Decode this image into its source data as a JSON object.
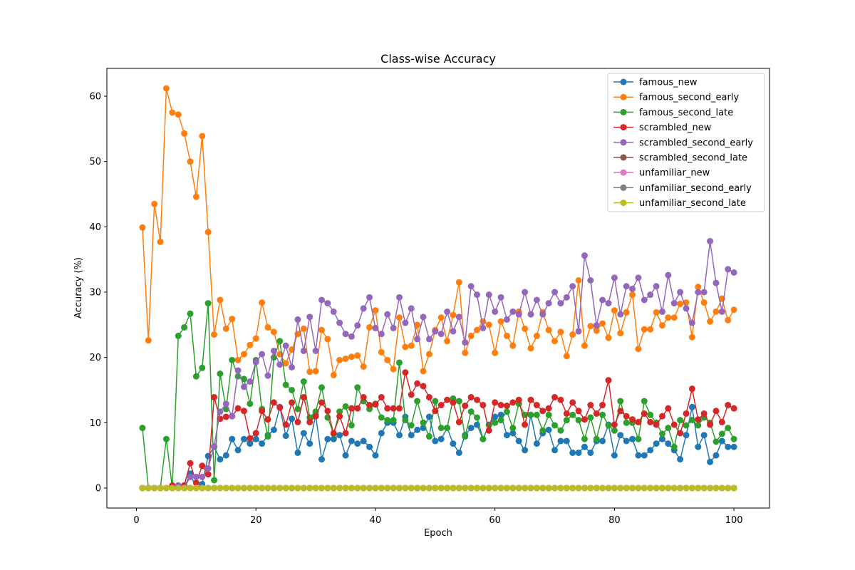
{
  "chart_data": {
    "type": "line",
    "title": "Class-wise Accuracy",
    "xlabel": "Epoch",
    "ylabel": "Accuracy (%)",
    "xlim": [
      -4.95,
      105.95
    ],
    "ylim": [
      -3.06,
      64.26
    ],
    "xticks": [
      0,
      20,
      40,
      60,
      80,
      100
    ],
    "yticks": [
      0,
      10,
      20,
      30,
      40,
      50,
      60
    ],
    "grid": false,
    "legend": "top-right",
    "x": [
      1,
      2,
      3,
      4,
      5,
      6,
      7,
      8,
      9,
      10,
      11,
      12,
      13,
      14,
      15,
      16,
      17,
      18,
      19,
      20,
      21,
      22,
      23,
      24,
      25,
      26,
      27,
      28,
      29,
      30,
      31,
      32,
      33,
      34,
      35,
      36,
      37,
      38,
      39,
      40,
      41,
      42,
      43,
      44,
      45,
      46,
      47,
      48,
      49,
      50,
      51,
      52,
      53,
      54,
      55,
      56,
      57,
      58,
      59,
      60,
      61,
      62,
      63,
      64,
      65,
      66,
      67,
      68,
      69,
      70,
      71,
      72,
      73,
      74,
      75,
      76,
      77,
      78,
      79,
      80,
      81,
      82,
      83,
      84,
      85,
      86,
      87,
      88,
      89,
      90,
      91,
      92,
      93,
      94,
      95,
      96,
      97,
      98,
      99,
      100
    ],
    "series": [
      {
        "name": "famous_new",
        "color": "#1f77b4",
        "values": [
          0,
          0,
          0,
          0,
          0,
          0,
          0,
          0,
          2.2,
          0,
          0.6,
          4.9,
          6.3,
          4.4,
          5.0,
          7.5,
          5.8,
          7.5,
          6.8,
          7.5,
          6.8,
          8.1,
          8.9,
          12.4,
          8.0,
          10.6,
          5.4,
          8.4,
          6.8,
          11.2,
          4.4,
          7.5,
          7.5,
          8.1,
          5.0,
          7.2,
          6.8,
          7.2,
          6.3,
          5.0,
          8.4,
          10.0,
          10.0,
          8.1,
          10.9,
          8.1,
          8.9,
          9.2,
          10.9,
          7.2,
          7.5,
          9.2,
          6.8,
          5.4,
          8.1,
          9.2,
          9.7,
          7.5,
          9.7,
          10.9,
          11.2,
          8.1,
          8.4,
          7.2,
          5.8,
          11.2,
          6.8,
          8.4,
          8.9,
          5.8,
          7.2,
          7.2,
          5.4,
          5.4,
          6.3,
          5.4,
          7.2,
          7.2,
          9.7,
          5.0,
          8.1,
          7.2,
          7.5,
          5.0,
          5.0,
          5.8,
          6.8,
          7.5,
          6.8,
          5.8,
          4.4,
          8.1,
          12.4,
          6.3,
          8.1,
          4.0,
          5.0,
          7.2,
          6.3,
          6.3
        ]
      },
      {
        "name": "famous_second_early",
        "color": "#ff7f0e",
        "values": [
          39.9,
          22.6,
          43.5,
          37.7,
          61.2,
          57.5,
          57.2,
          54.3,
          50.0,
          44.6,
          53.9,
          39.2,
          23.5,
          28.8,
          24.4,
          25.9,
          19.6,
          20.5,
          21.9,
          22.9,
          28.4,
          24.6,
          23.9,
          20.5,
          19.1,
          21.2,
          23.6,
          24.4,
          17.8,
          17.9,
          24.2,
          22.8,
          17.3,
          19.6,
          19.8,
          20.1,
          20.3,
          18.6,
          24.6,
          27.2,
          20.8,
          19.6,
          18.2,
          26.1,
          21.6,
          21.8,
          25.0,
          17.9,
          20.5,
          24.2,
          26.1,
          22.5,
          26.5,
          31.5,
          20.7,
          23.3,
          24.2,
          25.5,
          25.0,
          20.7,
          25.5,
          23.3,
          21.8,
          27.0,
          24.4,
          21.4,
          23.3,
          26.9,
          24.2,
          22.5,
          23.9,
          20.2,
          23.5,
          31.8,
          21.8,
          24.8,
          24.1,
          25.2,
          23.0,
          27.2,
          23.7,
          26.9,
          29.6,
          21.3,
          24.3,
          24.3,
          26.9,
          24.9,
          26.1,
          26.1,
          28.2,
          28.4,
          23.1,
          30.8,
          28.4,
          25.5,
          27.0,
          29.0,
          25.7,
          27.3
        ]
      },
      {
        "name": "famous_second_late",
        "color": "#2ca02c",
        "values": [
          9.2,
          0,
          0,
          0,
          7.5,
          0,
          23.3,
          24.6,
          26.7,
          17.1,
          18.4,
          28.3,
          1.2,
          17.5,
          12.1,
          19.6,
          17.1,
          16.7,
          12.9,
          19.6,
          12.1,
          7.9,
          20.0,
          22.5,
          15.8,
          15.0,
          12.1,
          16.3,
          10.8,
          11.7,
          15.4,
          10.8,
          8.3,
          11.7,
          12.5,
          9.6,
          15.4,
          13.3,
          12.1,
          12.9,
          10.8,
          10.4,
          10.4,
          19.2,
          10.4,
          9.6,
          13.3,
          10.0,
          7.9,
          13.3,
          9.2,
          9.2,
          13.7,
          13.3,
          7.9,
          11.7,
          10.8,
          7.5,
          9.6,
          10.0,
          10.4,
          11.7,
          9.2,
          12.9,
          11.2,
          11.2,
          11.2,
          8.8,
          11.2,
          9.6,
          8.8,
          10.4,
          11.2,
          10.4,
          7.5,
          10.8,
          7.5,
          11.2,
          9.6,
          8.8,
          13.3,
          10.0,
          10.0,
          7.5,
          13.3,
          11.2,
          10.0,
          8.3,
          9.2,
          6.3,
          10.4,
          9.6,
          10.4,
          9.6,
          10.8,
          10.0,
          7.1,
          8.3,
          9.2,
          7.5
        ]
      },
      {
        "name": "scrambled_new",
        "color": "#d62728",
        "values": [
          0,
          0,
          0,
          0,
          0,
          0.4,
          0,
          0.4,
          3.8,
          0.8,
          3.4,
          2.1,
          13.9,
          10.6,
          10.9,
          11.0,
          12.2,
          11.8,
          7.6,
          8.4,
          11.8,
          10.5,
          13.1,
          12.3,
          9.7,
          13.1,
          10.1,
          13.9,
          10.1,
          11.0,
          13.1,
          11.8,
          8.4,
          11.0,
          8.4,
          12.2,
          12.2,
          13.9,
          12.7,
          12.8,
          13.9,
          12.2,
          12.2,
          12.2,
          17.7,
          14.3,
          16.0,
          15.6,
          13.9,
          11.8,
          12.7,
          13.5,
          13.1,
          10.1,
          12.6,
          13.9,
          13.5,
          12.7,
          8.8,
          13.1,
          12.7,
          12.6,
          13.1,
          13.5,
          9.7,
          13.5,
          12.7,
          11.8,
          12.2,
          13.9,
          13.5,
          11.4,
          13.1,
          11.8,
          10.5,
          12.7,
          11.4,
          12.7,
          16.5,
          9.7,
          11.8,
          11.0,
          10.5,
          10.1,
          11.4,
          10.1,
          9.7,
          11.0,
          12.2,
          9.7,
          8.4,
          11.4,
          15.2,
          10.5,
          11.4,
          9.7,
          11.8,
          10.1,
          12.7,
          12.2
        ]
      },
      {
        "name": "scrambled_second_early",
        "color": "#9467bd",
        "values": [
          0,
          0,
          0,
          0,
          0,
          0,
          0.4,
          0,
          1.7,
          1.7,
          1.7,
          3.0,
          6.4,
          11.7,
          12.9,
          11.0,
          18.0,
          15.5,
          16.3,
          19.3,
          20.5,
          17.2,
          21.0,
          18.9,
          21.8,
          18.5,
          25.8,
          21.0,
          26.2,
          21.0,
          28.8,
          28.3,
          27.0,
          25.3,
          23.6,
          23.2,
          24.9,
          27.5,
          29.2,
          24.5,
          23.6,
          26.6,
          24.5,
          29.2,
          25.3,
          27.5,
          22.8,
          26.2,
          22.8,
          24.0,
          23.6,
          27.0,
          24.0,
          26.2,
          22.3,
          30.9,
          29.6,
          24.5,
          29.6,
          27.0,
          29.2,
          25.8,
          27.0,
          26.6,
          30.0,
          26.6,
          28.8,
          26.6,
          28.3,
          30.0,
          28.3,
          29.2,
          30.9,
          24.0,
          35.6,
          31.8,
          24.9,
          28.8,
          28.3,
          32.2,
          26.6,
          30.9,
          30.5,
          32.2,
          28.8,
          29.6,
          30.9,
          27.0,
          32.6,
          28.3,
          30.0,
          27.5,
          25.3,
          30.0,
          30.0,
          37.8,
          31.4,
          27.0,
          33.5,
          33.0
        ]
      },
      {
        "name": "scrambled_second_late",
        "color": "#8c564b",
        "values": [
          0,
          0,
          0,
          0,
          0,
          0,
          0,
          0,
          0,
          0,
          0,
          0,
          0,
          0,
          0,
          0,
          0,
          0,
          0,
          0,
          0,
          0,
          0,
          0,
          0,
          0,
          0,
          0,
          0,
          0,
          0,
          0,
          0,
          0,
          0,
          0,
          0,
          0,
          0,
          0,
          0,
          0,
          0,
          0,
          0,
          0,
          0,
          0,
          0,
          0,
          0,
          0,
          0,
          0,
          0,
          0,
          0,
          0,
          0,
          0,
          0,
          0,
          0,
          0,
          0,
          0,
          0,
          0,
          0,
          0,
          0,
          0,
          0,
          0,
          0,
          0,
          0,
          0,
          0,
          0,
          0,
          0,
          0,
          0,
          0,
          0,
          0,
          0,
          0,
          0,
          0,
          0,
          0,
          0,
          0,
          0,
          0,
          0,
          0,
          0
        ]
      },
      {
        "name": "unfamiliar_new",
        "color": "#e377c2",
        "values": [
          0,
          0,
          0,
          0,
          0,
          0,
          0,
          0,
          0,
          0,
          0,
          0,
          0,
          0,
          0,
          0,
          0,
          0,
          0,
          0,
          0,
          0,
          0,
          0,
          0,
          0,
          0,
          0,
          0,
          0,
          0,
          0,
          0,
          0,
          0,
          0,
          0,
          0,
          0,
          0,
          0,
          0,
          0,
          0,
          0,
          0,
          0,
          0,
          0,
          0,
          0,
          0,
          0,
          0,
          0,
          0,
          0,
          0,
          0,
          0,
          0,
          0,
          0,
          0,
          0,
          0,
          0,
          0,
          0,
          0,
          0,
          0,
          0,
          0,
          0,
          0,
          0,
          0,
          0,
          0,
          0,
          0,
          0,
          0,
          0,
          0,
          0,
          0,
          0,
          0,
          0,
          0,
          0,
          0,
          0,
          0,
          0,
          0,
          0,
          0
        ]
      },
      {
        "name": "unfamiliar_second_early",
        "color": "#7f7f7f",
        "values": [
          0,
          0,
          0,
          0,
          0,
          0,
          0,
          0,
          0,
          0,
          0,
          0,
          0,
          0,
          0,
          0,
          0,
          0,
          0,
          0,
          0,
          0,
          0,
          0,
          0,
          0,
          0,
          0,
          0,
          0,
          0,
          0,
          0,
          0,
          0,
          0,
          0,
          0,
          0,
          0,
          0,
          0,
          0,
          0,
          0,
          0,
          0,
          0,
          0,
          0,
          0,
          0,
          0,
          0,
          0,
          0,
          0,
          0,
          0,
          0,
          0,
          0,
          0,
          0,
          0,
          0,
          0,
          0,
          0,
          0,
          0,
          0,
          0,
          0,
          0,
          0,
          0,
          0,
          0,
          0,
          0,
          0,
          0,
          0,
          0,
          0,
          0,
          0,
          0,
          0,
          0,
          0,
          0,
          0,
          0,
          0,
          0,
          0,
          0,
          0
        ]
      },
      {
        "name": "unfamiliar_second_late",
        "color": "#bcbd22",
        "values": [
          0,
          0,
          0,
          0,
          0,
          0,
          0,
          0,
          0,
          0,
          0,
          0,
          0,
          0,
          0,
          0,
          0,
          0,
          0,
          0,
          0,
          0,
          0,
          0,
          0,
          0,
          0,
          0,
          0,
          0,
          0,
          0,
          0,
          0,
          0,
          0,
          0,
          0,
          0,
          0,
          0,
          0,
          0,
          0,
          0,
          0,
          0,
          0,
          0,
          0,
          0,
          0,
          0,
          0,
          0,
          0,
          0,
          0,
          0,
          0,
          0,
          0,
          0,
          0,
          0,
          0,
          0,
          0,
          0,
          0,
          0,
          0,
          0,
          0,
          0,
          0,
          0,
          0,
          0,
          0,
          0,
          0,
          0,
          0,
          0,
          0,
          0,
          0,
          0,
          0,
          0,
          0,
          0,
          0,
          0,
          0,
          0,
          0,
          0,
          0
        ]
      }
    ]
  }
}
